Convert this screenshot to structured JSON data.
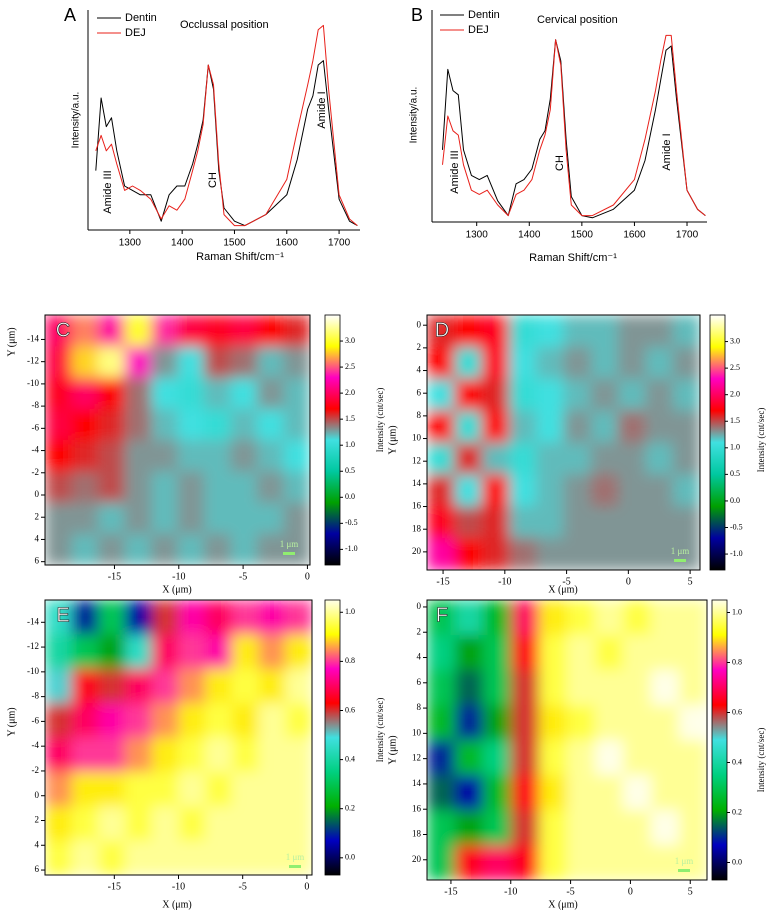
{
  "chart_data": [
    {
      "type": "line",
      "label": "A",
      "title": "Occlussal position",
      "x_label": "Raman Shift/cm⁻¹",
      "y_label": "Intensity/a.u.",
      "annotations": [
        "Amide III",
        "CH",
        "Amide I"
      ],
      "x": [
        1235,
        1245,
        1255,
        1265,
        1275,
        1290,
        1305,
        1320,
        1340,
        1360,
        1375,
        1390,
        1405,
        1420,
        1430,
        1440,
        1450,
        1460,
        1470,
        1480,
        1500,
        1520,
        1560,
        1600,
        1620,
        1640,
        1650,
        1660,
        1670,
        1680,
        1700,
        1720,
        1735
      ],
      "xlim": [
        1220,
        1740
      ],
      "xticks": [
        1300,
        1400,
        1500,
        1600,
        1700
      ],
      "ylim": [
        0,
        1
      ],
      "series": [
        {
          "name": "Dentin",
          "color": "#000000",
          "values": [
            0.27,
            0.6,
            0.47,
            0.51,
            0.36,
            0.2,
            0.18,
            0.16,
            0.16,
            0.04,
            0.16,
            0.2,
            0.2,
            0.3,
            0.39,
            0.5,
            0.75,
            0.64,
            0.27,
            0.1,
            0.04,
            0.02,
            0.07,
            0.16,
            0.32,
            0.55,
            0.61,
            0.75,
            0.77,
            0.55,
            0.14,
            0.04,
            0.02
          ]
        },
        {
          "name": "DEJ",
          "color": "#e8201a",
          "values": [
            0.36,
            0.43,
            0.36,
            0.39,
            0.3,
            0.18,
            0.2,
            0.18,
            0.14,
            0.05,
            0.11,
            0.09,
            0.14,
            0.27,
            0.36,
            0.48,
            0.75,
            0.66,
            0.3,
            0.07,
            0.02,
            0.02,
            0.07,
            0.23,
            0.45,
            0.66,
            0.77,
            0.91,
            0.93,
            0.64,
            0.16,
            0.05,
            0.02
          ]
        }
      ]
    },
    {
      "type": "line",
      "label": "B",
      "title": "Cervical position",
      "x_label": "Raman Shift/cm⁻¹",
      "y_label": "Intensity/a.u.",
      "annotations": [
        "Amide III",
        "CH",
        "Amide I"
      ],
      "x": [
        1235,
        1245,
        1255,
        1265,
        1275,
        1290,
        1305,
        1320,
        1340,
        1360,
        1375,
        1390,
        1405,
        1420,
        1430,
        1440,
        1450,
        1460,
        1470,
        1480,
        1500,
        1520,
        1560,
        1600,
        1620,
        1640,
        1650,
        1660,
        1670,
        1680,
        1700,
        1720,
        1735
      ],
      "xlim": [
        1215,
        1738
      ],
      "xticks": [
        1300,
        1400,
        1500,
        1600,
        1700
      ],
      "ylim": [
        0,
        1
      ],
      "series": [
        {
          "name": "Dentin",
          "color": "#000000",
          "values": [
            0.34,
            0.72,
            0.62,
            0.6,
            0.34,
            0.22,
            0.2,
            0.22,
            0.1,
            0.03,
            0.18,
            0.2,
            0.25,
            0.39,
            0.43,
            0.58,
            0.86,
            0.76,
            0.39,
            0.12,
            0.03,
            0.02,
            0.06,
            0.15,
            0.29,
            0.53,
            0.67,
            0.81,
            0.83,
            0.58,
            0.15,
            0.06,
            0.03
          ]
        },
        {
          "name": "DEJ",
          "color": "#e8201a",
          "values": [
            0.27,
            0.5,
            0.43,
            0.41,
            0.27,
            0.15,
            0.13,
            0.15,
            0.08,
            0.03,
            0.13,
            0.15,
            0.2,
            0.34,
            0.41,
            0.53,
            0.86,
            0.74,
            0.34,
            0.08,
            0.03,
            0.03,
            0.08,
            0.2,
            0.39,
            0.62,
            0.76,
            0.88,
            0.88,
            0.62,
            0.15,
            0.06,
            0.03
          ]
        }
      ]
    },
    {
      "type": "heatmap",
      "label": "C",
      "x_label": "X (μm)",
      "y_label": "Y (μm)",
      "colorbar_label": "Intensity (cnt/sec)",
      "scalebar_label": "1 μm",
      "xlim": [
        -20.4,
        0.2
      ],
      "xticks": [
        -15,
        -10,
        -5,
        0
      ],
      "ylim": [
        6.3,
        -16.2
      ],
      "yticks": [
        -14,
        -12,
        -10,
        -8,
        -6,
        -4,
        -2,
        0,
        2,
        4,
        6
      ],
      "clim": [
        -1.3,
        3.5
      ],
      "cticks": [
        {
          "value": -1,
          "label": "-1.0"
        },
        -0.5,
        {
          "value": 0,
          "label": "0.0"
        },
        0.5,
        {
          "value": 1,
          "label": "1.0"
        },
        1.5,
        {
          "value": 2,
          "label": "2.0"
        },
        2.5,
        {
          "value": 3,
          "label": "3.0"
        }
      ],
      "colors": [
        "#000000",
        "#0000a0",
        "#00a000",
        "#00c8a0",
        "#40e0e0",
        "#ff0000",
        "#ff00c0",
        "#ffff00",
        "#ffffff"
      ],
      "z": [
        [
          2.0,
          2.6,
          2.2,
          3.0,
          2.4,
          1.9,
          1.8,
          1.9,
          1.7,
          1.6
        ],
        [
          1.9,
          2.8,
          3.2,
          2.3,
          1.3,
          1.1,
          1.5,
          1.4,
          1.2,
          1.3
        ],
        [
          1.8,
          2.0,
          1.7,
          1.4,
          1.1,
          1.0,
          1.2,
          1.1,
          1.3,
          1.2
        ],
        [
          1.9,
          1.7,
          1.6,
          1.4,
          1.2,
          1.1,
          1.0,
          1.2,
          1.1,
          1.2
        ],
        [
          1.7,
          1.6,
          1.5,
          1.3,
          1.3,
          1.2,
          1.2,
          1.3,
          1.2,
          1.1
        ],
        [
          1.5,
          1.4,
          1.5,
          1.3,
          1.2,
          1.3,
          1.2,
          1.2,
          1.3,
          1.2
        ],
        [
          1.3,
          1.3,
          1.2,
          1.3,
          1.2,
          1.3,
          1.2,
          1.2,
          1.2,
          1.3
        ],
        [
          1.3,
          1.2,
          1.3,
          1.2,
          1.3,
          1.2,
          1.3,
          1.2,
          1.3,
          1.3
        ]
      ]
    },
    {
      "type": "heatmap",
      "label": "D",
      "x_label": "X (μm)",
      "y_label": "Y (μm)",
      "colorbar_label": "Intensity (cnt/sec)",
      "scalebar_label": "1 μm",
      "xlim": [
        -16.3,
        5.8
      ],
      "xticks": [
        -15,
        -10,
        -5,
        0,
        5
      ],
      "ylim": [
        21.6,
        -0.9
      ],
      "yticks": [
        0,
        2,
        4,
        6,
        8,
        10,
        12,
        14,
        16,
        18,
        20
      ],
      "clim": [
        -1.3,
        3.5
      ],
      "cticks": [
        {
          "value": -1,
          "label": "-1.0"
        },
        -0.5,
        {
          "value": 0,
          "label": "0.0"
        },
        0.5,
        {
          "value": 1,
          "label": "1.0"
        },
        1.5,
        {
          "value": 2,
          "label": "2.0"
        },
        2.5,
        {
          "value": 3,
          "label": "3.0"
        }
      ],
      "colors": [
        "#000000",
        "#0000a0",
        "#00a000",
        "#00c8a0",
        "#40e0e0",
        "#ff0000",
        "#ff00c0",
        "#ffff00",
        "#ffffff"
      ],
      "z": [
        [
          1.6,
          1.7,
          1.8,
          1.0,
          1.1,
          1.2,
          1.2,
          1.3,
          1.3,
          1.2
        ],
        [
          1.7,
          1.0,
          1.8,
          1.1,
          1.2,
          1.3,
          1.2,
          1.3,
          1.2,
          1.3
        ],
        [
          1.1,
          1.7,
          1.6,
          1.0,
          1.1,
          1.2,
          1.3,
          1.2,
          1.3,
          1.2
        ],
        [
          1.7,
          1.0,
          1.7,
          1.2,
          1.1,
          1.3,
          1.2,
          1.4,
          1.3,
          1.3
        ],
        [
          1.0,
          1.6,
          1.2,
          1.0,
          1.2,
          1.2,
          1.3,
          1.3,
          1.2,
          1.3
        ],
        [
          1.6,
          1.1,
          1.7,
          1.1,
          1.2,
          1.3,
          1.4,
          1.3,
          1.3,
          1.2
        ],
        [
          1.8,
          1.5,
          1.6,
          1.2,
          1.2,
          1.3,
          1.3,
          1.3,
          1.3,
          1.3
        ],
        [
          2.2,
          1.7,
          1.6,
          1.4,
          1.3,
          1.3,
          1.3,
          1.3,
          1.3,
          1.3
        ]
      ]
    },
    {
      "type": "heatmap",
      "label": "E",
      "x_label": "X (μm)",
      "y_label": "Y (μm)",
      "colorbar_label": "Intensity (cnt/sec)",
      "scalebar_label": "1 μm",
      "xlim": [
        -20.4,
        0.4
      ],
      "xticks": [
        -15,
        -10,
        -5,
        0
      ],
      "ylim": [
        6.4,
        -15.8
      ],
      "yticks": [
        -14,
        -12,
        -10,
        -8,
        -6,
        -4,
        -2,
        0,
        2,
        4,
        6
      ],
      "clim": [
        -0.07,
        1.05
      ],
      "cticks": [
        {
          "value": 0,
          "label": "0.0"
        },
        0.2,
        0.4,
        0.6,
        0.8,
        {
          "value": 1,
          "label": "1.0"
        }
      ],
      "colors": [
        "#000000",
        "#0000c0",
        "#00b000",
        "#00d080",
        "#40e0e0",
        "#ff0000",
        "#ff00c0",
        "#ffff00",
        "#ffffe8"
      ],
      "z": [
        [
          0.45,
          0.1,
          0.3,
          0.05,
          0.6,
          0.75,
          0.7,
          0.8,
          0.75,
          0.8
        ],
        [
          0.4,
          0.3,
          0.2,
          0.45,
          0.7,
          0.8,
          0.75,
          0.9,
          0.85,
          0.9
        ],
        [
          0.5,
          0.65,
          0.6,
          0.7,
          0.8,
          0.85,
          0.9,
          0.95,
          0.9,
          1.0
        ],
        [
          0.6,
          0.7,
          0.75,
          0.8,
          0.85,
          0.9,
          0.95,
          0.9,
          1.0,
          0.95
        ],
        [
          0.7,
          0.8,
          0.8,
          0.85,
          0.9,
          0.95,
          1.0,
          0.95,
          1.0,
          1.0
        ],
        [
          0.85,
          0.9,
          0.9,
          0.95,
          0.95,
          1.0,
          0.95,
          1.0,
          1.0,
          1.0
        ],
        [
          0.9,
          0.95,
          1.0,
          0.95,
          1.0,
          0.95,
          1.0,
          1.0,
          1.0,
          1.0
        ],
        [
          0.95,
          1.0,
          0.95,
          1.0,
          1.0,
          1.0,
          1.0,
          1.0,
          1.0,
          1.0
        ]
      ]
    },
    {
      "type": "heatmap",
      "label": "F",
      "x_label": "X (μm)",
      "y_label": "Y (μm)",
      "colorbar_label": "Intensity (cnt/sec)",
      "scalebar_label": "1 μm",
      "xlim": [
        -17.0,
        6.4
      ],
      "xticks": [
        -15,
        -10,
        -5,
        0,
        5
      ],
      "ylim": [
        21.6,
        -0.55
      ],
      "yticks": [
        0,
        2,
        4,
        6,
        8,
        10,
        12,
        14,
        16,
        18,
        20
      ],
      "clim": [
        -0.07,
        1.05
      ],
      "cticks": [
        {
          "value": 0,
          "label": "0.0"
        },
        0.2,
        0.4,
        0.6,
        0.8,
        {
          "value": 1,
          "label": "1.0"
        }
      ],
      "colors": [
        "#000000",
        "#0000c0",
        "#00b000",
        "#00d080",
        "#40e0e0",
        "#ff0000",
        "#ff00c0",
        "#ffff00",
        "#ffffe8"
      ],
      "z": [
        [
          0.3,
          0.4,
          0.25,
          0.7,
          0.9,
          0.95,
          1.0,
          0.95,
          1.0,
          1.0
        ],
        [
          0.35,
          0.2,
          0.3,
          0.65,
          0.95,
          1.0,
          0.95,
          1.0,
          1.0,
          1.0
        ],
        [
          0.3,
          0.15,
          0.3,
          0.6,
          0.95,
          1.0,
          1.0,
          1.0,
          1.05,
          1.0
        ],
        [
          0.25,
          0.1,
          0.2,
          0.6,
          0.9,
          0.95,
          1.0,
          1.0,
          1.0,
          1.05
        ],
        [
          0.1,
          0.25,
          0.35,
          0.6,
          0.95,
          1.0,
          1.05,
          1.0,
          1.0,
          1.0
        ],
        [
          0.15,
          0.05,
          0.25,
          0.65,
          0.9,
          1.0,
          1.0,
          1.05,
          1.0,
          1.0
        ],
        [
          0.3,
          0.2,
          0.3,
          0.6,
          0.95,
          1.0,
          1.0,
          1.0,
          1.05,
          1.0
        ],
        [
          0.3,
          0.65,
          0.7,
          0.65,
          0.95,
          1.0,
          1.0,
          1.0,
          1.0,
          1.0
        ]
      ]
    }
  ]
}
